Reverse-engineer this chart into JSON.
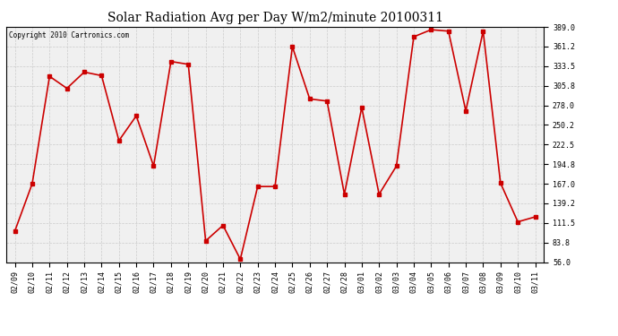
{
  "title": "Solar Radiation Avg per Day W/m2/minute 20100311",
  "copyright": "Copyright 2010 Cartronics.com",
  "dates": [
    "02/09",
    "02/10",
    "02/11",
    "02/12",
    "02/13",
    "02/14",
    "02/15",
    "02/16",
    "02/17",
    "02/18",
    "02/19",
    "02/20",
    "02/21",
    "02/22",
    "02/23",
    "02/24",
    "02/25",
    "02/26",
    "02/27",
    "02/28",
    "03/01",
    "03/02",
    "03/03",
    "03/04",
    "03/05",
    "03/06",
    "03/07",
    "03/08",
    "03/09",
    "03/10",
    "03/11"
  ],
  "values": [
    100,
    167,
    319,
    302,
    325,
    320,
    228,
    263,
    192,
    340,
    336,
    86,
    108,
    60,
    163,
    163,
    361,
    287,
    284,
    152,
    275,
    152,
    192,
    375,
    385,
    383,
    270,
    383,
    168,
    113,
    120
  ],
  "ylim": [
    56.0,
    389.0
  ],
  "yticks": [
    56.0,
    83.8,
    111.5,
    139.2,
    167.0,
    194.8,
    222.5,
    250.2,
    278.0,
    305.8,
    333.5,
    361.2,
    389.0
  ],
  "line_color": "#cc0000",
  "marker": "s",
  "marker_size": 2.5,
  "grid_color": "#cccccc",
  "bg_color": "#f0f0f0",
  "title_fontsize": 10,
  "tick_fontsize": 6,
  "copyright_fontsize": 5.5
}
